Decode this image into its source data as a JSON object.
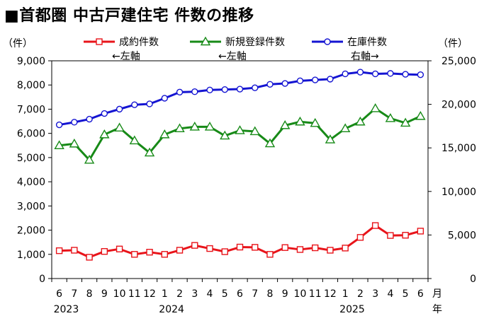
{
  "title": "■首都圏 中古戸建住宅 件数の推移",
  "chart_data": {
    "type": "line",
    "left_axis": {
      "unit": "（件）",
      "ylim": [
        0,
        9000
      ],
      "ticks": [
        "0",
        "1,000",
        "2,000",
        "3,000",
        "4,000",
        "5,000",
        "6,000",
        "7,000",
        "8,000",
        "9,000"
      ]
    },
    "right_axis": {
      "unit": "（件）",
      "ylim": [
        0,
        25000
      ],
      "ticks": [
        "0",
        "5,000",
        "10,000",
        "15,000",
        "20,000",
        "25,000"
      ]
    },
    "x_labels": [
      "6",
      "7",
      "8",
      "9",
      "10",
      "11",
      "12",
      "1",
      "2",
      "3",
      "4",
      "5",
      "6",
      "7",
      "8",
      "9",
      "10",
      "11",
      "12",
      "1",
      "2",
      "3",
      "4",
      "5",
      "6"
    ],
    "x_unit": [
      "月",
      "年"
    ],
    "years": [
      {
        "label": "2023",
        "index": 0
      },
      {
        "label": "2024",
        "index": 7
      },
      {
        "label": "2025",
        "index": 19
      }
    ],
    "series": [
      {
        "name": "成約件数",
        "axis": "left",
        "axis_note": "←左軸",
        "color": "#e8141a",
        "marker": "square",
        "values": [
          1150,
          1170,
          880,
          1120,
          1220,
          1000,
          1090,
          1000,
          1170,
          1370,
          1240,
          1110,
          1300,
          1290,
          1000,
          1280,
          1200,
          1270,
          1170,
          1260,
          1700,
          2190,
          1780,
          1790,
          1960
        ]
      },
      {
        "name": "新規登録件数",
        "axis": "left",
        "axis_note": "←左軸",
        "color": "#178a17",
        "marker": "triangle",
        "values": [
          5500,
          5570,
          4900,
          5950,
          6230,
          5700,
          5200,
          5950,
          6200,
          6270,
          6270,
          5900,
          6120,
          6080,
          5580,
          6330,
          6480,
          6420,
          5740,
          6200,
          6480,
          7030,
          6620,
          6430,
          6710
        ]
      },
      {
        "name": "在庫件数",
        "axis": "right",
        "axis_note": "右軸→",
        "color": "#1414d2",
        "marker": "circle",
        "values": [
          17650,
          17950,
          18300,
          18950,
          19450,
          19950,
          20050,
          20700,
          21400,
          21450,
          21650,
          21700,
          21750,
          21900,
          22300,
          22400,
          22700,
          22800,
          22900,
          23500,
          23700,
          23500,
          23550,
          23450,
          23400
        ]
      }
    ]
  }
}
